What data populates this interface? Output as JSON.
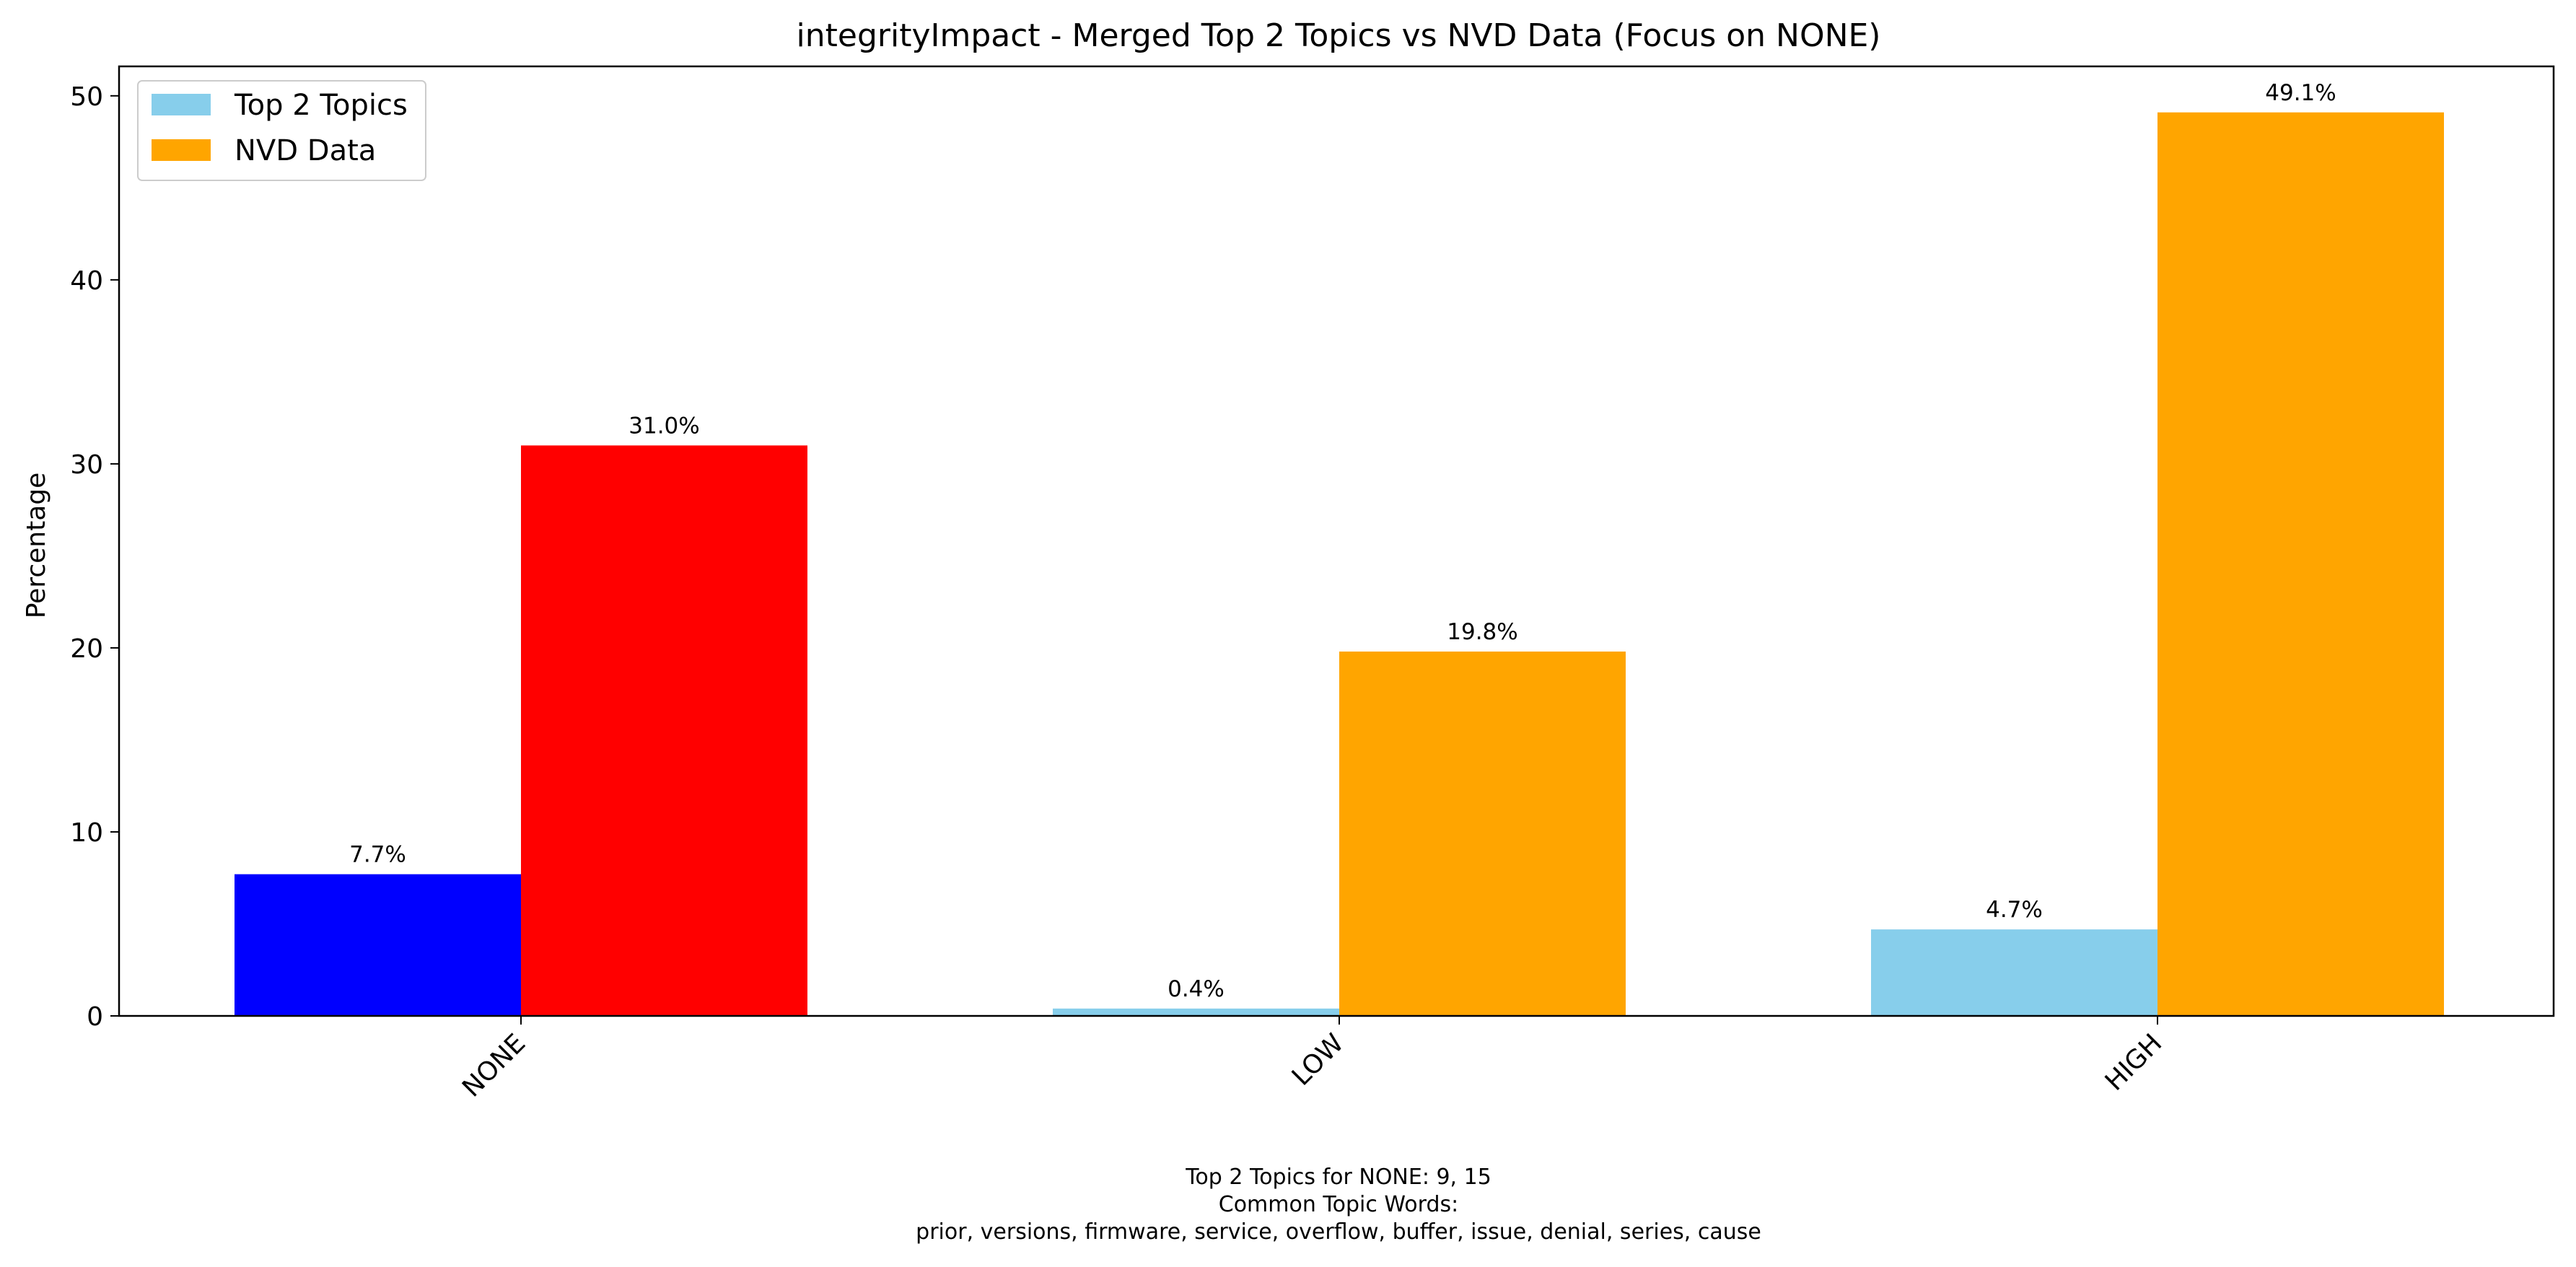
{
  "chart_data": {
    "type": "bar",
    "title": "integrityImpact - Merged Top 2 Topics vs NVD Data (Focus on NONE)",
    "xlabel": "",
    "ylabel": "Percentage",
    "categories": [
      "NONE",
      "LOW",
      "HIGH"
    ],
    "series": [
      {
        "name": "Top 2 Topics",
        "color": "#87CEEB",
        "values": [
          7.7,
          0.4,
          4.7
        ],
        "labels": [
          "7.7%",
          "0.4%",
          "4.7%"
        ]
      },
      {
        "name": "NVD Data",
        "color": "#FFA500",
        "values": [
          31.0,
          19.8,
          49.1
        ],
        "labels": [
          "31.0%",
          "19.8%",
          "49.1%"
        ]
      }
    ],
    "highlight": {
      "category": "NONE",
      "colors": [
        "#0000FF",
        "#FF0000"
      ]
    },
    "ylim": [
      0,
      51.6
    ],
    "yticks": [
      0,
      10,
      20,
      30,
      40,
      50
    ],
    "grid": false,
    "legend_position": "top-left",
    "caption": [
      "Top 2 Topics for NONE: 9, 15",
      "Common Topic Words:",
      "prior,  versions,  firmware,  service,  overflow,  buffer,  issue,  denial,  series,  cause"
    ]
  }
}
